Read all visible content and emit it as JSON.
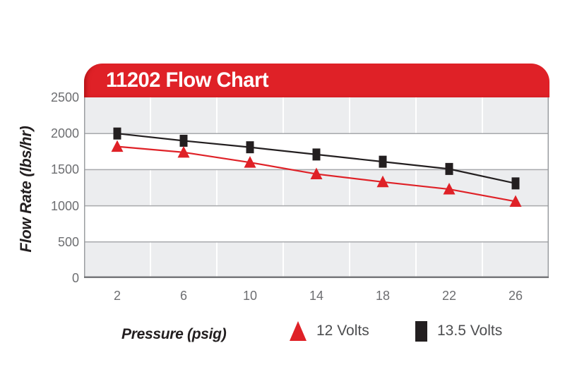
{
  "title": "11202 Flow Chart",
  "chart_data": {
    "type": "line",
    "title": "11202 Flow Chart",
    "xlabel": "Pressure (psig)",
    "ylabel": "Flow Rate (lbs/hr)",
    "categories": [
      2,
      6,
      10,
      14,
      18,
      22,
      26
    ],
    "x_tick_labels": [
      "2",
      "6",
      "10",
      "14",
      "18",
      "22",
      "26"
    ],
    "y_tick_labels": [
      "2500",
      "2000",
      "1500",
      "1000",
      "500",
      "0"
    ],
    "ylim": [
      0,
      2500
    ],
    "y_major_step": 500,
    "grid": {
      "horizontal_major": true,
      "vertical_category_boundaries": true,
      "alternating_horizontal_bands": true
    },
    "legend_position": "bottom",
    "series": [
      {
        "name": "12 Volts",
        "marker": "triangle",
        "color": "#df2127",
        "values": [
          1820,
          1740,
          1600,
          1440,
          1330,
          1230,
          1060
        ]
      },
      {
        "name": "13.5 Volts",
        "marker": "square",
        "color": "#231f20",
        "values": [
          2000,
          1900,
          1810,
          1710,
          1610,
          1510,
          1310
        ]
      }
    ]
  },
  "colors": {
    "banner_red": "#df2127",
    "banner_text": "#ffffff",
    "band_gray": "#ecedef",
    "band_white": "#ffffff",
    "gridline": "#a7a9ac",
    "side_border": "#9b9ea1",
    "bottom_axis": "#77787b",
    "tick_text": "#6d6e71",
    "axis_title_text": "#231f20",
    "legend_text": "#4d4e50"
  }
}
